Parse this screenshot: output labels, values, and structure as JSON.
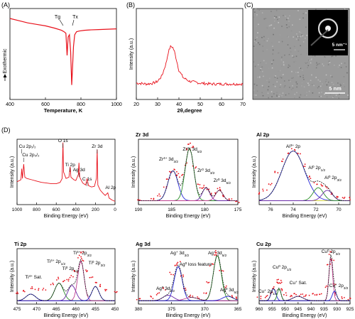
{
  "panel_labels": [
    "(A)",
    "(B)",
    "(C)",
    "(D)"
  ],
  "colors": {
    "data": "#e8101a",
    "fit_a": "#2a2ad8",
    "fit_b": "#2a8a2a",
    "fit_c": "#6a2aa8",
    "fit_d": "#c04090",
    "envelope": "#1a1a1a",
    "baseline": "#c8c800"
  },
  "chart_data": [
    {
      "id": "A",
      "type": "line",
      "xlabel": "Temperature, K",
      "ylabel": "Exothermic",
      "xlim": [
        400,
        1000
      ],
      "xticks": [
        400,
        600,
        800,
        1000
      ],
      "annotations": [
        {
          "text": "Tg",
          "x": 700
        },
        {
          "text": "Tx",
          "x": 752
        }
      ],
      "series": [
        {
          "x": [
            400,
            450,
            500,
            550,
            600,
            650,
            690,
            705,
            715,
            722,
            728,
            735,
            742,
            748,
            752,
            758,
            765,
            775,
            790,
            820,
            850,
            900,
            950,
            1000
          ],
          "y": [
            0.0,
            -0.03,
            -0.06,
            -0.08,
            -0.1,
            -0.13,
            -0.16,
            -0.18,
            -0.2,
            -0.5,
            -0.25,
            -0.22,
            -0.45,
            -0.9,
            -0.7,
            -0.38,
            -0.22,
            -0.18,
            -0.17,
            -0.16,
            -0.155,
            -0.15,
            -0.145,
            -0.14
          ]
        }
      ]
    },
    {
      "id": "B",
      "type": "line",
      "xlabel": "2θ,degree",
      "ylabel": "Intensity (a.u.)",
      "xlim": [
        20,
        70
      ],
      "xticks": [
        20,
        30,
        40,
        50,
        60,
        70
      ],
      "series": [
        {
          "x": [
            20,
            25,
            28,
            30,
            32,
            34,
            35,
            36,
            37,
            38,
            39,
            40,
            42,
            45,
            50,
            55,
            60,
            65,
            70
          ],
          "y": [
            0.18,
            0.17,
            0.18,
            0.2,
            0.26,
            0.4,
            0.52,
            0.58,
            0.58,
            0.52,
            0.42,
            0.32,
            0.24,
            0.2,
            0.18,
            0.17,
            0.17,
            0.17,
            0.17
          ]
        }
      ]
    },
    {
      "id": "C",
      "type": "image",
      "scale_labels": [
        "5 nm⁻¹",
        "5 nm"
      ]
    },
    {
      "id": "D1",
      "type": "line",
      "title": "",
      "xlabel": "Binding Energy (eV)",
      "ylabel": "Intensity (a.u.)",
      "xlim": [
        1000,
        0
      ],
      "xticks": [
        1000,
        800,
        600,
        400,
        200,
        0
      ],
      "annotations": [
        {
          "text": "Cu 2p₁/₂",
          "x": 952
        },
        {
          "text": "Cu 2p₃/₂",
          "x": 932
        },
        {
          "text": "O 1s",
          "x": 531
        },
        {
          "text": "Ti 2p",
          "x": 458
        },
        {
          "text": "Ag 3d",
          "x": 368
        },
        {
          "text": "Zr 3d",
          "x": 182
        },
        {
          "text": "C 1s",
          "x": 285
        },
        {
          "text": "Al 2p",
          "x": 74
        }
      ],
      "series": [
        {
          "x": [
            1000,
            960,
            952,
            945,
            932,
            920,
            900,
            850,
            800,
            750,
            700,
            650,
            600,
            560,
            540,
            531,
            525,
            500,
            470,
            458,
            450,
            420,
            400,
            375,
            368,
            360,
            330,
            300,
            285,
            270,
            240,
            210,
            190,
            182,
            175,
            150,
            120,
            100,
            74,
            60,
            30,
            0
          ],
          "y": [
            0.35,
            0.38,
            0.55,
            0.4,
            0.62,
            0.42,
            0.4,
            0.38,
            0.36,
            0.34,
            0.33,
            0.32,
            0.32,
            0.34,
            0.4,
            0.95,
            0.5,
            0.4,
            0.42,
            0.58,
            0.42,
            0.38,
            0.37,
            0.46,
            0.64,
            0.42,
            0.33,
            0.3,
            0.4,
            0.29,
            0.27,
            0.28,
            0.4,
            0.84,
            0.3,
            0.22,
            0.17,
            0.14,
            0.18,
            0.1,
            0.07,
            0.05
          ]
        }
      ]
    },
    {
      "id": "D2",
      "type": "line",
      "title": "Zr 3d",
      "xlabel": "Binding Energy (eV)",
      "ylabel": "Intensity (a.u.)",
      "xlim": [
        190,
        175
      ],
      "xticks": [
        190,
        185,
        180,
        175
      ],
      "annotations": [
        {
          "text": "Zr4+ 3d3/2",
          "x": 184.8
        },
        {
          "text": "Zr4+ 3d5/2",
          "x": 182.3
        },
        {
          "text": "Zr0 3d3/2",
          "x": 179.8
        },
        {
          "text": "Zr0 3d5/2",
          "x": 177.8
        }
      ],
      "series": [
        {
          "name": "",
          "x": [
            190,
            188,
            187,
            186,
            185.5,
            185,
            184.5,
            184,
            183.5,
            183,
            182.5,
            182.2,
            182,
            181.5,
            181,
            180.5,
            180,
            179.5,
            179,
            178.5,
            178,
            177.5,
            177,
            176,
            175
          ],
          "y": [
            0.06,
            0.09,
            0.14,
            0.26,
            0.4,
            0.5,
            0.52,
            0.46,
            0.44,
            0.62,
            0.86,
            0.92,
            0.88,
            0.58,
            0.32,
            0.24,
            0.28,
            0.22,
            0.16,
            0.18,
            0.24,
            0.2,
            0.12,
            0.07,
            0.05
          ]
        }
      ]
    },
    {
      "id": "D3",
      "type": "line",
      "title": "Al 2p",
      "xlabel": "Binding Energy (eV)",
      "ylabel": "Intensity (a.u.)",
      "xlim": [
        77,
        69
      ],
      "xticks": [
        76,
        74,
        72,
        70
      ],
      "annotations": [
        {
          "text": "Al3+ 2p",
          "x": 74.0
        },
        {
          "text": "Al0 2p1/2",
          "x": 71.8
        },
        {
          "text": "Al0 2p3/2",
          "x": 71.0
        }
      ],
      "series": [
        {
          "x": [
            77,
            76.5,
            76,
            75.5,
            75,
            74.5,
            74,
            73.5,
            73,
            72.5,
            72,
            71.5,
            71,
            70.5,
            70,
            69.5,
            69
          ],
          "y": [
            0.18,
            0.22,
            0.32,
            0.5,
            0.68,
            0.8,
            0.84,
            0.78,
            0.6,
            0.42,
            0.32,
            0.3,
            0.26,
            0.18,
            0.12,
            0.1,
            0.09
          ]
        }
      ]
    },
    {
      "id": "D4",
      "type": "line",
      "title": "Ti 2p",
      "xlabel": "Binding Energy (eV)",
      "ylabel": "Intensity (a.u.)",
      "xlim": [
        475,
        450
      ],
      "xticks": [
        475,
        470,
        465,
        460,
        455,
        450
      ],
      "annotations": [
        {
          "text": "Ti4+ Sat.",
          "x": 471.5
        },
        {
          "text": "Ti4+ 2p1/2",
          "x": 464.3
        },
        {
          "text": "Ti0 2p1/2",
          "x": 461.0
        },
        {
          "text": "Ti4+ 2p3/2",
          "x": 458.7
        },
        {
          "text": "Ti0 2p3/2",
          "x": 455.0
        }
      ],
      "series": [
        {
          "x": [
            475,
            473,
            471.5,
            470,
            468,
            466,
            464.5,
            463,
            462,
            461,
            460,
            459,
            458.6,
            458,
            457,
            456,
            455,
            454,
            452,
            450
          ],
          "y": [
            0.2,
            0.24,
            0.3,
            0.26,
            0.28,
            0.36,
            0.46,
            0.4,
            0.44,
            0.5,
            0.58,
            0.86,
            0.92,
            0.8,
            0.6,
            0.48,
            0.4,
            0.34,
            0.26,
            0.22
          ]
        }
      ]
    },
    {
      "id": "D5",
      "type": "line",
      "title": "Ag 3d",
      "xlabel": "Binding Energy (eV)",
      "ylabel": "Intensity (a.u.)",
      "xlim": [
        380,
        365
      ],
      "xticks": [
        380,
        375,
        370,
        365
      ],
      "annotations": [
        {
          "text": "Ag+ 3d3/2",
          "x": 374.0
        },
        {
          "text": "Ag+ 3d5/2",
          "x": 368.1
        },
        {
          "text": "Ag0 3d3/2",
          "x": 375.5
        },
        {
          "text": "Ag0 loss feature",
          "x": 372.0
        },
        {
          "text": "Ag0 3d5/2",
          "x": 366.5
        }
      ],
      "series": [
        {
          "x": [
            380,
            378,
            377,
            376,
            375,
            374.5,
            374,
            373.5,
            373,
            372,
            371,
            370,
            369.5,
            369,
            368.5,
            368.1,
            367.5,
            367,
            366,
            365
          ],
          "y": [
            0.1,
            0.12,
            0.18,
            0.28,
            0.55,
            0.7,
            0.74,
            0.5,
            0.26,
            0.14,
            0.12,
            0.2,
            0.4,
            0.7,
            0.9,
            0.94,
            0.6,
            0.3,
            0.14,
            0.1
          ]
        }
      ]
    },
    {
      "id": "D6",
      "type": "line",
      "title": "Cu 2p",
      "xlabel": "Binding Energy (eV)",
      "ylabel": "Intensity (a.u.)",
      "xlim": [
        960,
        925
      ],
      "xticks": [
        960,
        955,
        950,
        945,
        940,
        935,
        930,
        925
      ],
      "annotations": [
        {
          "text": "Cu+ 2p1/2",
          "x": 954.5
        },
        {
          "text": "Cu0 2p1/2",
          "x": 952.3
        },
        {
          "text": "Cu+ Sat.",
          "x": 945.0
        },
        {
          "text": "Cu0 2p3/2",
          "x": 932.4
        },
        {
          "text": "Cu+ 2p3/2",
          "x": 931.0
        }
      ],
      "series": [
        {
          "x": [
            960,
            957,
            955,
            954,
            953,
            952.4,
            952,
            951,
            950,
            948,
            946,
            944,
            942,
            940,
            938,
            936,
            934,
            933,
            932.4,
            932,
            931,
            930,
            928,
            925
          ],
          "y": [
            0.12,
            0.14,
            0.2,
            0.3,
            0.38,
            0.42,
            0.38,
            0.26,
            0.18,
            0.16,
            0.18,
            0.17,
            0.16,
            0.17,
            0.18,
            0.2,
            0.3,
            0.7,
            0.92,
            0.8,
            0.36,
            0.18,
            0.12,
            0.1
          ]
        }
      ]
    }
  ]
}
